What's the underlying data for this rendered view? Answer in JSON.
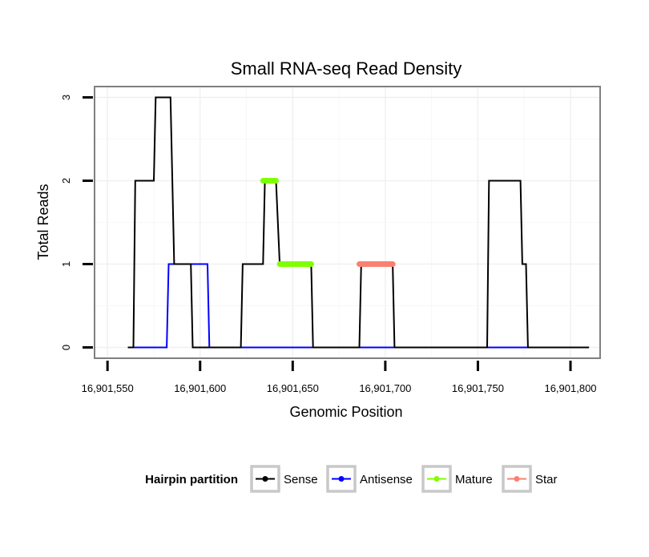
{
  "chart_data": {
    "type": "line",
    "title": "Small RNA-seq Read Density",
    "xlabel": "Genomic Position",
    "ylabel": "Total Reads",
    "xlim": [
      16901543,
      16901816
    ],
    "ylim": [
      -0.13,
      3.13
    ],
    "x_ticks": [
      16901550,
      16901600,
      16901650,
      16901700,
      16901750,
      16901800
    ],
    "x_tick_labels": [
      "16,901,550",
      "16,901,600",
      "16,901,650",
      "16,901,700",
      "16,901,750",
      "16,901,800"
    ],
    "y_ticks": [
      0,
      1,
      2,
      3
    ],
    "y_tick_labels": [
      "0",
      "1",
      "2",
      "3"
    ],
    "grid": true,
    "legend": {
      "title": "Hairpin partition",
      "position": "bottom",
      "entries": [
        "Sense",
        "Antisense",
        "Mature",
        "Star"
      ]
    },
    "series": [
      {
        "name": "Sense",
        "color": "#000000",
        "points": [
          [
            16901561,
            0
          ],
          [
            16901564,
            0
          ],
          [
            16901565,
            2
          ],
          [
            16901575,
            2
          ],
          [
            16901576,
            3
          ],
          [
            16901584,
            3
          ],
          [
            16901586,
            1
          ],
          [
            16901595,
            1
          ],
          [
            16901596,
            0
          ],
          [
            16901622,
            0
          ],
          [
            16901623,
            1
          ],
          [
            16901634,
            1
          ],
          [
            16901635,
            2
          ],
          [
            16901641,
            2
          ],
          [
            16901643,
            1
          ],
          [
            16901660,
            1
          ],
          [
            16901661,
            0
          ],
          [
            16901686,
            0
          ],
          [
            16901687,
            1
          ],
          [
            16901704,
            1
          ],
          [
            16901705,
            0
          ],
          [
            16901755,
            0
          ],
          [
            16901756,
            2
          ],
          [
            16901773,
            2
          ],
          [
            16901774,
            1
          ],
          [
            16901776,
            1
          ],
          [
            16901777,
            0
          ],
          [
            16901810,
            0
          ]
        ]
      },
      {
        "name": "Antisense",
        "color": "#0000ff",
        "points": [
          [
            16901561,
            0
          ],
          [
            16901582,
            0
          ],
          [
            16901583,
            1
          ],
          [
            16901604,
            1
          ],
          [
            16901605,
            0
          ],
          [
            16901810,
            0
          ]
        ]
      },
      {
        "name": "Mature",
        "color": "#7fff00",
        "segments": [
          [
            [
              16901634,
              2
            ],
            [
              16901641,
              2
            ]
          ],
          [
            [
              16901643,
              1
            ],
            [
              16901660,
              1
            ]
          ]
        ]
      },
      {
        "name": "Star",
        "color": "#fa8072",
        "segments": [
          [
            [
              16901686,
              1
            ],
            [
              16901704,
              1
            ]
          ]
        ]
      }
    ]
  }
}
